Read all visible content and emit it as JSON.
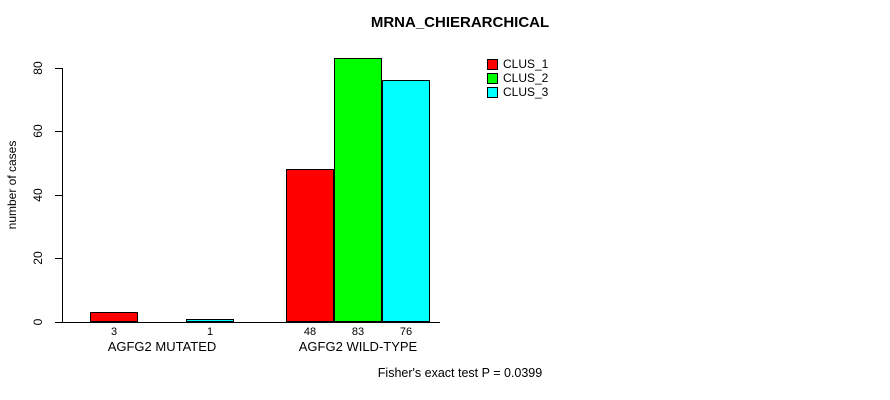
{
  "chart_data": {
    "type": "bar",
    "title": "MRNA_CHIERARCHICAL",
    "xlabel": "",
    "ylabel": "number of cases",
    "categories": [
      "AGFG2 MUTATED",
      "AGFG2 WILD-TYPE"
    ],
    "series": [
      {
        "name": "CLUS_1",
        "color": "#ff0000",
        "values": [
          3,
          48
        ]
      },
      {
        "name": "CLUS_2",
        "color": "#00ff00",
        "values": [
          0,
          83
        ]
      },
      {
        "name": "CLUS_3",
        "color": "#00ffff",
        "values": [
          1,
          76
        ]
      }
    ],
    "bar_value_labels": [
      [
        "3",
        "",
        "1"
      ],
      [
        "48",
        "83",
        "76"
      ]
    ],
    "yticks": [
      0,
      20,
      40,
      60,
      80
    ],
    "ylim": [
      0,
      83
    ],
    "grid": false,
    "legend_position": "top-right",
    "legend_entries": [
      "CLUS_1",
      "CLUS_2",
      "CLUS_3"
    ],
    "annotation": "Fisher's exact test P = 0.0399"
  }
}
